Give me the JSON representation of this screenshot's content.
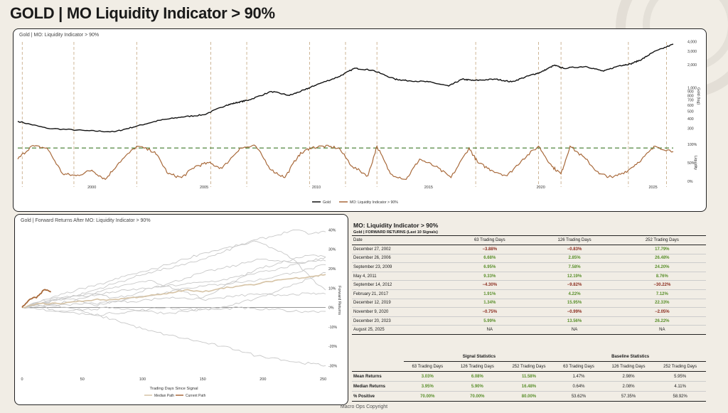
{
  "page": {
    "title": "GOLD | MO Liquidity Indicator > 90%",
    "copyright": "Macro Ops Copyright"
  },
  "colors": {
    "gold_line": "#111111",
    "liquidity": "#a8693a",
    "threshold": "#3d7a2a",
    "signal_line": "#c9ae8c",
    "pos": "#5a8f2b",
    "neg": "#8c2e20"
  },
  "chart_data": [
    {
      "type": "line",
      "title": "Gold | MO: Liquidity Indicator > 90%",
      "x_ticks": [
        "2000",
        "2005",
        "2010",
        "2015",
        "2020",
        "2025"
      ],
      "x_range": [
        1996.7,
        2025.9
      ],
      "gold": {
        "name": "Gold",
        "ylabel": "Gold (log)",
        "scale": "log",
        "y_ticks": [
          300,
          400,
          500,
          600,
          700,
          800,
          900,
          1000,
          2000,
          3000,
          4000
        ],
        "y_tick_labels": [
          "300",
          "400",
          "500",
          "600",
          "700",
          "800",
          "900",
          "1,000",
          "2,000",
          "3,000",
          "4,000"
        ],
        "x": [
          1996.7,
          1998,
          1999.7,
          2001,
          2002,
          2003,
          2004,
          2005,
          2006,
          2006.5,
          2007,
          2008,
          2008.8,
          2009.5,
          2010,
          2011,
          2011.7,
          2012.5,
          2013.5,
          2014,
          2015,
          2015.9,
          2016.5,
          2017,
          2018,
          2018.7,
          2019.5,
          2020,
          2020.6,
          2021,
          2022,
          2022.8,
          2023.5,
          2024,
          2024.5,
          2025,
          2025.9
        ],
        "y": [
          370,
          300,
          280,
          270,
          320,
          380,
          420,
          450,
          600,
          650,
          700,
          900,
          800,
          950,
          1100,
          1400,
          1800,
          1700,
          1300,
          1250,
          1200,
          1060,
          1300,
          1250,
          1300,
          1200,
          1450,
          1600,
          1970,
          1800,
          1900,
          1650,
          1950,
          2050,
          2350,
          2900,
          3700
        ]
      },
      "liquidity": {
        "name": "MO: Liquidity Indicator > 90%",
        "ylabel": "Liquidity",
        "y_ticks": [
          0,
          50,
          100
        ],
        "y_tick_labels": [
          "0%",
          "50%",
          "100%"
        ],
        "threshold": 90,
        "x": [
          1996.7,
          1997.3,
          1998,
          1998.7,
          1999.3,
          2000,
          2000.6,
          2001.2,
          2002,
          2002.8,
          2003.4,
          2004,
          2004.6,
          2005.2,
          2005.8,
          2006.6,
          2007.3,
          2008,
          2008.6,
          2009.2,
          2009.7,
          2010.3,
          2011,
          2011.6,
          2012.3,
          2012.7,
          2013.3,
          2014,
          2014.6,
          2015.3,
          2016,
          2016.8,
          2017.2,
          2017.8,
          2018.5,
          2019.2,
          2019.9,
          2020.5,
          2020.9,
          2021.3,
          2022,
          2022.6,
          2023.2,
          2023.9,
          2024.5,
          2025.1,
          2025.9
        ],
        "y": [
          60,
          95,
          90,
          20,
          15,
          30,
          5,
          50,
          95,
          80,
          20,
          10,
          40,
          50,
          35,
          90,
          95,
          30,
          10,
          70,
          90,
          95,
          90,
          40,
          15,
          95,
          20,
          5,
          60,
          40,
          10,
          90,
          50,
          30,
          15,
          60,
          95,
          40,
          20,
          95,
          60,
          20,
          10,
          30,
          60,
          95,
          80
        ]
      },
      "signal_years": [
        1996.9,
        1999.2,
        2002.0,
        2005.3,
        2006.9,
        2009.7,
        2011.3,
        2012.7,
        2017.1,
        2019.9,
        2020.9,
        2023.9,
        2025.6
      ],
      "legend": [
        "Gold",
        "MO: Liquidity Indicator > 90%"
      ]
    },
    {
      "type": "line",
      "title": "Gold | Forward Returns After MO: Liquidity Indicator > 90%",
      "xlabel": "Trading Days Since Signal",
      "ylabel": "Forward Returns",
      "x_ticks": [
        0,
        50,
        100,
        150,
        200,
        250
      ],
      "x_range": [
        0,
        252
      ],
      "y_ticks": [
        -30,
        -20,
        -10,
        0,
        10,
        20,
        30,
        40
      ],
      "y_tick_labels": [
        "-30%",
        "-20%",
        "-10%",
        "0%",
        "10%",
        "20%",
        "30%",
        "40%"
      ],
      "y_range": [
        -35,
        42
      ],
      "days": [
        0,
        15,
        30,
        45,
        60,
        75,
        90,
        105,
        120,
        135,
        150,
        165,
        180,
        195,
        210,
        225,
        240,
        252
      ],
      "paths": [
        [
          0,
          2,
          1,
          -1,
          -4,
          -3,
          -2,
          -1,
          0,
          -1,
          -1,
          0,
          2,
          5,
          8,
          12,
          15,
          18
        ],
        [
          0,
          3,
          5,
          4,
          7,
          10,
          12,
          14,
          11,
          8,
          5,
          10,
          15,
          20,
          22,
          25,
          27,
          26
        ],
        [
          0,
          2,
          4,
          6,
          7,
          5,
          6,
          10,
          12,
          15,
          18,
          20,
          22,
          25,
          24,
          23,
          24,
          24
        ],
        [
          0,
          2,
          5,
          6,
          9,
          12,
          15,
          18,
          20,
          22,
          25,
          28,
          32,
          34,
          30,
          25,
          15,
          9
        ],
        [
          0,
          1,
          -2,
          -3,
          -4,
          -6,
          -9,
          -12,
          -14,
          -16,
          -18,
          -20,
          -22,
          -25,
          -26,
          -28,
          -29,
          -30
        ],
        [
          0,
          1,
          1,
          2,
          2,
          3,
          3,
          4,
          5,
          5,
          4,
          5,
          6,
          7,
          6,
          7,
          7,
          7
        ],
        [
          0,
          1,
          2,
          4,
          1,
          3,
          5,
          6,
          8,
          10,
          11,
          12,
          13,
          14,
          16,
          18,
          20,
          22
        ],
        [
          0,
          -1,
          -2,
          -1,
          -1,
          0,
          -1,
          -2,
          -3,
          -2,
          -1,
          -1,
          0,
          -1,
          -1,
          -2,
          -2,
          -2
        ],
        [
          0,
          2,
          4,
          6,
          6,
          8,
          9,
          10,
          11,
          12,
          13,
          14,
          16,
          18,
          19,
          22,
          24,
          26
        ],
        [
          0,
          3,
          6,
          9,
          11,
          14,
          17,
          19,
          22,
          25,
          28,
          30,
          32,
          35,
          37,
          40,
          38,
          39
        ]
      ],
      "median_path": [
        0,
        2,
        2,
        3,
        4,
        4,
        5,
        6,
        7,
        9,
        8,
        10,
        11,
        12,
        14,
        15,
        16,
        17
      ],
      "current_path": {
        "days": [
          0,
          3,
          6,
          9,
          12,
          15,
          18,
          21,
          24
        ],
        "values": [
          0,
          2,
          4,
          5,
          5,
          7,
          9,
          9,
          8
        ]
      },
      "legend": [
        "Median Path",
        "Current Path"
      ]
    }
  ],
  "table": {
    "title": "MO: Liquidity Indicator > 90%",
    "subtitle": "Gold | FORWARD RETURNS (Last 10 Signals)",
    "headers": [
      "Date",
      "63 Trading Days",
      "126 Trading Days",
      "252 Trading Days"
    ],
    "rows": [
      [
        "December 27, 2002",
        "−3.88%",
        "−0.83%",
        "17.79%"
      ],
      [
        "December 26, 2006",
        "6.68%",
        "2.85%",
        "26.48%"
      ],
      [
        "September 23, 2009",
        "6.95%",
        "7.58%",
        "24.20%"
      ],
      [
        "May 4, 2011",
        "9.33%",
        "12.19%",
        "8.76%"
      ],
      [
        "September 14, 2012",
        "−4.30%",
        "−9.82%",
        "−30.22%"
      ],
      [
        "February 21, 2017",
        "1.91%",
        "4.22%",
        "7.12%"
      ],
      [
        "December 12, 2019",
        "1.34%",
        "15.95%",
        "22.33%"
      ],
      [
        "November 9, 2020",
        "−0.75%",
        "−0.99%",
        "−2.05%"
      ],
      [
        "December 20, 2023",
        "5.99%",
        "13.56%",
        "26.22%"
      ],
      [
        "August 25, 2025",
        "NA",
        "NA",
        "NA"
      ]
    ]
  },
  "stats": {
    "signal_group": "Signal Statistics",
    "baseline_group": "Baseline Statistics",
    "columns": [
      "63 Trading Days",
      "126 Trading Days",
      "252 Trading Days",
      "63 Trading Days",
      "126 Trading Days",
      "252 Trading Days"
    ],
    "rows": [
      {
        "label": "Mean Returns",
        "signal": [
          "3.03%",
          "6.08%",
          "11.58%"
        ],
        "baseline": [
          "1.47%",
          "2.98%",
          "5.95%"
        ]
      },
      {
        "label": "Median Returns",
        "signal": [
          "3.95%",
          "5.90%",
          "16.48%"
        ],
        "baseline": [
          "0.64%",
          "2.08%",
          "4.11%"
        ]
      },
      {
        "label": "% Positive",
        "signal": [
          "70.00%",
          "70.00%",
          "80.00%"
        ],
        "baseline": [
          "53.62%",
          "57.35%",
          "58.92%"
        ]
      }
    ]
  }
}
